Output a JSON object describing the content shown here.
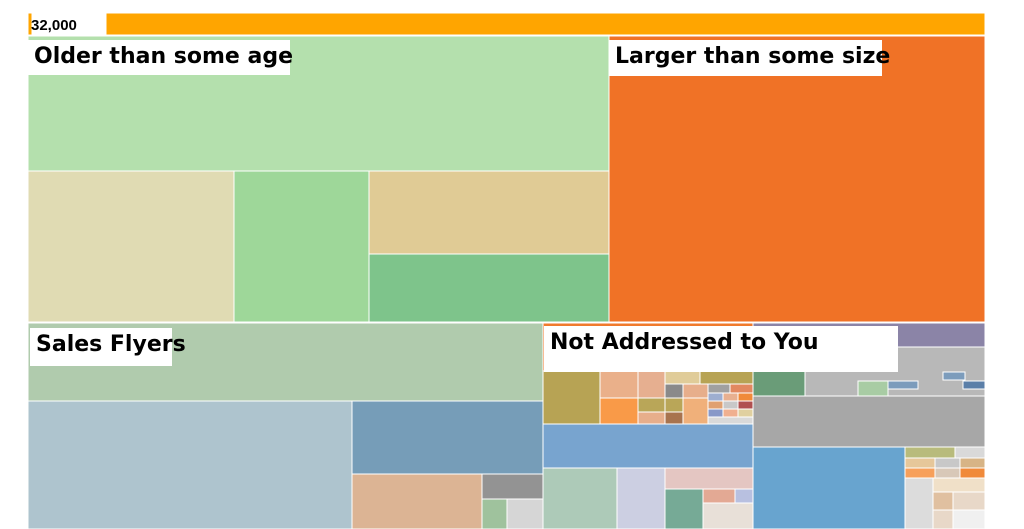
{
  "chart_data": {
    "type": "treemap",
    "total_label": "32,000",
    "groups": [
      {
        "name": "Older than some age",
        "color": "#b4e0ad"
      },
      {
        "name": "Larger than some size",
        "color": "#f07226"
      },
      {
        "name": "Sales Flyers",
        "color": "#b0cbad"
      },
      {
        "name": "Not Addressed to You",
        "color": "#b7a354"
      }
    ],
    "colors": {
      "top_bar": "#ffa500"
    }
  }
}
